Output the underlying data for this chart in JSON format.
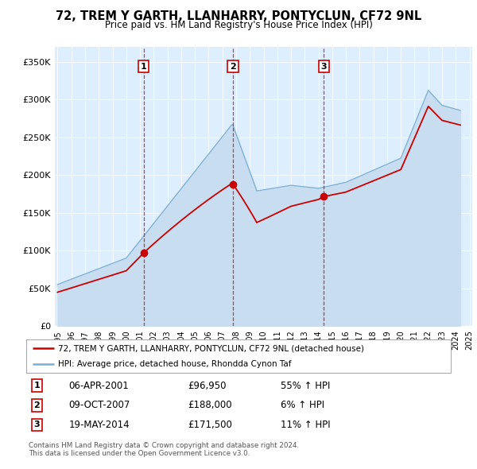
{
  "title": "72, TREM Y GARTH, LLANHARRY, PONTYCLUN, CF72 9NL",
  "subtitle": "Price paid vs. HM Land Registry's House Price Index (HPI)",
  "property_label": "72, TREM Y GARTH, LLANHARRY, PONTYCLUN, CF72 9NL (detached house)",
  "hpi_label": "HPI: Average price, detached house, Rhondda Cynon Taf",
  "ylim": [
    0,
    370000
  ],
  "yticks": [
    0,
    50000,
    100000,
    150000,
    200000,
    250000,
    300000,
    350000
  ],
  "ytick_labels": [
    "£0",
    "£50K",
    "£100K",
    "£150K",
    "£200K",
    "£250K",
    "£300K",
    "£350K"
  ],
  "sale_events": [
    {
      "label": "1",
      "x": 2001.27,
      "price": 96950,
      "pct": "55%",
      "dir": "↑",
      "date_str": "06-APR-2001",
      "price_str": "£96,950"
    },
    {
      "label": "2",
      "x": 2007.77,
      "price": 188000,
      "pct": "6%",
      "dir": "↑",
      "date_str": "09-OCT-2007",
      "price_str": "£188,000"
    },
    {
      "label": "3",
      "x": 2014.38,
      "price": 171500,
      "pct": "11%",
      "dir": "↑",
      "date_str": "19-MAY-2014",
      "price_str": "£171,500"
    }
  ],
  "property_color": "#cc0000",
  "hpi_fill_color": "#c8ddf0",
  "hpi_line_color": "#7bafd4",
  "background_color": "#ddeeff",
  "footnote1": "Contains HM Land Registry data © Crown copyright and database right 2024.",
  "footnote2": "This data is licensed under the Open Government Licence v3.0.",
  "xlim": [
    1994.8,
    2025.2
  ],
  "xticks": [
    1995,
    1996,
    1997,
    1998,
    1999,
    2000,
    2001,
    2002,
    2003,
    2004,
    2005,
    2006,
    2007,
    2008,
    2009,
    2010,
    2011,
    2012,
    2013,
    2014,
    2015,
    2016,
    2017,
    2018,
    2019,
    2020,
    2021,
    2022,
    2023,
    2024,
    2025
  ]
}
